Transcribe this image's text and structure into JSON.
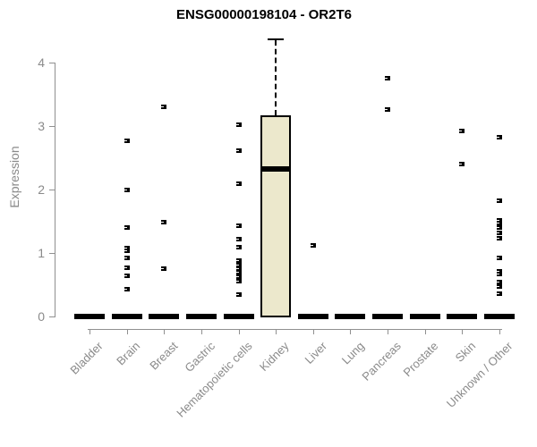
{
  "chart_data": {
    "type": "boxplot",
    "title": "ENSG00000198104 - OR2T6",
    "ylabel": "Expression",
    "ylim": [
      0,
      4.4
    ],
    "yticks": [
      0,
      1,
      2,
      3,
      4
    ],
    "grid": false,
    "legend": "none",
    "categories": [
      "Bladder",
      "Brain",
      "Breast",
      "Gastric",
      "Hematopoietic cells",
      "Kidney",
      "Liver",
      "Lung",
      "Pancreas",
      "Prostate",
      "Skin",
      "Unknown / Other"
    ],
    "boxes": [
      {
        "category": "Bladder",
        "median": 0,
        "q1": 0,
        "q3": 0,
        "whisker_low": 0,
        "whisker_high": 0,
        "points": []
      },
      {
        "category": "Brain",
        "median": 0,
        "q1": 0,
        "q3": 0,
        "whisker_low": 0,
        "whisker_high": 0,
        "points": [
          2.78,
          2.0,
          1.41,
          1.08,
          1.05,
          0.93,
          0.77,
          0.65,
          0.44
        ]
      },
      {
        "category": "Breast",
        "median": 0,
        "q1": 0,
        "q3": 0,
        "whisker_low": 0,
        "whisker_high": 0,
        "points": [
          3.31,
          1.49,
          0.76
        ]
      },
      {
        "category": "Gastric",
        "median": 0,
        "q1": 0,
        "q3": 0,
        "whisker_low": 0,
        "whisker_high": 0,
        "points": []
      },
      {
        "category": "Hematopoietic cells",
        "median": 0,
        "q1": 0,
        "q3": 0,
        "whisker_low": 0,
        "whisker_high": 0,
        "points": [
          3.03,
          2.62,
          2.1,
          1.44,
          1.23,
          1.1,
          0.89,
          0.82,
          0.76,
          0.7,
          0.63,
          0.57,
          0.35
        ]
      },
      {
        "category": "Kidney",
        "median": 2.33,
        "q1": 0,
        "q3": 3.17,
        "whisker_low": 0,
        "whisker_high": 4.38,
        "points": []
      },
      {
        "category": "Liver",
        "median": 0,
        "q1": 0,
        "q3": 0,
        "whisker_low": 0,
        "whisker_high": 0,
        "points": [
          1.13
        ]
      },
      {
        "category": "Lung",
        "median": 0,
        "q1": 0,
        "q3": 0,
        "whisker_low": 0,
        "whisker_high": 0,
        "points": []
      },
      {
        "category": "Pancreas",
        "median": 0,
        "q1": 0,
        "q3": 0,
        "whisker_low": 0,
        "whisker_high": 0,
        "points": [
          3.77,
          3.27
        ]
      },
      {
        "category": "Prostate",
        "median": 0,
        "q1": 0,
        "q3": 0,
        "whisker_low": 0,
        "whisker_high": 0,
        "points": []
      },
      {
        "category": "Skin",
        "median": 0,
        "q1": 0,
        "q3": 0,
        "whisker_low": 0,
        "whisker_high": 0,
        "points": [
          2.94,
          2.41
        ]
      },
      {
        "category": "Unknown / Other",
        "median": 0,
        "q1": 0,
        "q3": 0,
        "whisker_low": 0,
        "whisker_high": 0,
        "points": [
          2.83,
          1.83,
          1.53,
          1.48,
          1.41,
          1.32,
          1.24,
          0.93,
          0.72,
          0.68,
          0.55,
          0.48,
          0.37
        ]
      }
    ],
    "colors": {
      "box_fill": "#ECE8CC",
      "box_border": "#000000",
      "point": "#000000",
      "axis": "#909090",
      "axis_text": "#8A8A8A",
      "title_text": "#000000"
    }
  }
}
